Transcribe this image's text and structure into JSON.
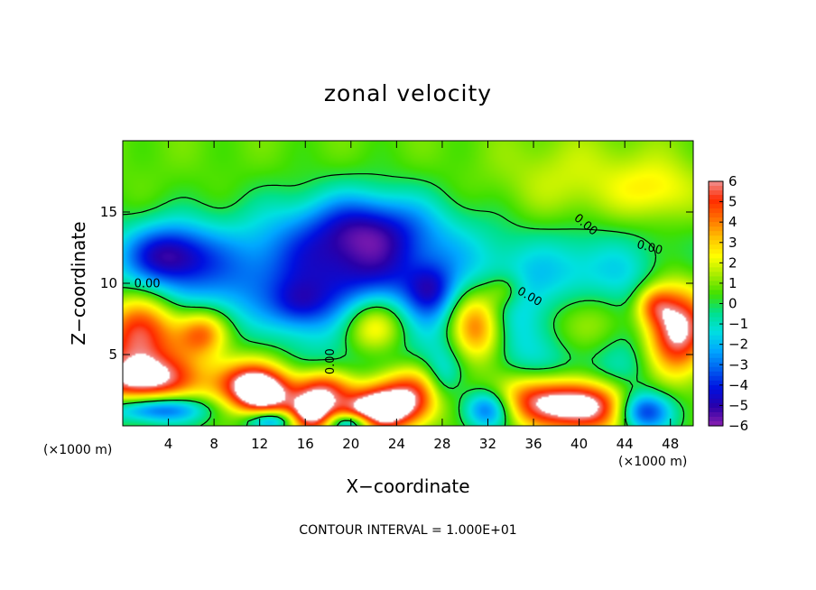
{
  "chart_data": {
    "type": "heatmap",
    "title": "zonal velocity",
    "xlabel": "X−coordinate",
    "ylabel": "Z−coordinate",
    "x_unit": "(×1000 m)",
    "z_unit": "(×1000 m)",
    "xlim": [
      0,
      50
    ],
    "ylim": [
      0,
      20
    ],
    "x_ticks": [
      "4",
      "8",
      "12",
      "16",
      "20",
      "24",
      "28",
      "32",
      "36",
      "40",
      "44",
      "48"
    ],
    "y_ticks": [
      "5",
      "10",
      "15"
    ],
    "colorbar": {
      "min": -6,
      "max": 6,
      "ticks": [
        "6",
        "5",
        "4",
        "3",
        "2",
        "1",
        "0",
        "−1",
        "−2",
        "−3",
        "−4",
        "−5",
        "−6"
      ],
      "colors": [
        "#8a1fb0",
        "#2a00a8",
        "#0010e0",
        "#0060f0",
        "#00a8ff",
        "#00e0e0",
        "#00e08c",
        "#40e000",
        "#a6ec00",
        "#ffff00",
        "#ffc000",
        "#ff7000",
        "#ff2a00",
        "#f09090"
      ],
      "above_range": "#ffffff"
    },
    "contour_labels": [
      "0.00",
      "0.00",
      "0.00",
      "0.00",
      "0.00"
    ],
    "contour_interval_note": "CONTOUR INTERVAL = 1.000E+01",
    "background_value": 0.4,
    "features": [
      {
        "x": 4,
        "z": 12,
        "sx": 2.8,
        "sz": 1.6,
        "v": -4.3
      },
      {
        "x": 20,
        "z": 12.5,
        "sx": 7,
        "sz": 2.6,
        "v": -3.2
      },
      {
        "x": 21.5,
        "z": 14,
        "sx": 3.8,
        "sz": 1.7,
        "v": -2.6
      },
      {
        "x": 15.5,
        "z": 8.5,
        "sx": 1.8,
        "sz": 1.2,
        "v": -2.2
      },
      {
        "x": 27,
        "z": 9.5,
        "sx": 1.5,
        "sz": 1.3,
        "v": -2.4
      },
      {
        "x": 10,
        "z": 9.5,
        "sx": 9,
        "sz": 2.5,
        "v": -2.0
      },
      {
        "x": 40,
        "z": 17,
        "sx": 5,
        "sz": 2.2,
        "v": 1.2
      },
      {
        "x": 47,
        "z": 16.5,
        "sx": 2.5,
        "sz": 1.5,
        "v": 1.5
      },
      {
        "x": 1.5,
        "z": 6.5,
        "sx": 2.6,
        "sz": 2.2,
        "v": 5.5
      },
      {
        "x": 2,
        "z": 3.2,
        "sx": 3.5,
        "sz": 1.2,
        "v": 5.2
      },
      {
        "x": 7,
        "z": 6.5,
        "sx": 1.6,
        "sz": 1.2,
        "v": 4.2
      },
      {
        "x": 10.5,
        "z": 3,
        "sx": 2,
        "sz": 1.2,
        "v": 4.0
      },
      {
        "x": 12.5,
        "z": 2.2,
        "sx": 1.8,
        "sz": 1.2,
        "v": 6.0
      },
      {
        "x": 17.5,
        "z": 2.5,
        "sx": 1.8,
        "sz": 1.0,
        "v": 4.8
      },
      {
        "x": 16.5,
        "z": 0.8,
        "sx": 1.4,
        "sz": 0.9,
        "v": 6.0
      },
      {
        "x": 22,
        "z": 7,
        "sx": 2.3,
        "sz": 1.7,
        "v": 7.0
      },
      {
        "x": 25,
        "z": 2.2,
        "sx": 2.8,
        "sz": 1.4,
        "v": 5.5
      },
      {
        "x": 22,
        "z": 1.0,
        "sx": 2.2,
        "sz": 1.0,
        "v": 6.3
      },
      {
        "x": 31,
        "z": 7,
        "sx": 1.8,
        "sz": 2.0,
        "v": 6.6
      },
      {
        "x": 36,
        "z": 1.8,
        "sx": 3,
        "sz": 1.3,
        "v": 5.0
      },
      {
        "x": 41,
        "z": 1.3,
        "sx": 2.8,
        "sz": 1.3,
        "v": 6.5
      },
      {
        "x": 48.5,
        "z": 6.8,
        "sx": 2.0,
        "sz": 2.2,
        "v": 7.0
      },
      {
        "x": 46.5,
        "z": 8.5,
        "sx": 1.2,
        "sz": 1.0,
        "v": 3.0
      },
      {
        "x": 33.5,
        "z": 9.5,
        "sx": 1.2,
        "sz": 0.9,
        "v": 1.8
      },
      {
        "x": 40.5,
        "z": 7.2,
        "sx": 3.0,
        "sz": 2.2,
        "v": 7.5
      },
      {
        "x": 40.5,
        "z": 7.2,
        "sx": 4.2,
        "sz": 3.2,
        "v": -6.5
      },
      {
        "x": 22,
        "z": 7,
        "sx": 3.3,
        "sz": 2.6,
        "v": -4.5
      },
      {
        "x": 31,
        "z": 7,
        "sx": 2.8,
        "sz": 3.0,
        "v": -2.5
      },
      {
        "x": 3,
        "z": 1.2,
        "sx": 3,
        "sz": 0.7,
        "v": -4.5
      },
      {
        "x": 13,
        "z": 0.4,
        "sx": 1.6,
        "sz": 0.5,
        "v": -4.0
      },
      {
        "x": 20,
        "z": 0.2,
        "sx": 1.4,
        "sz": 0.5,
        "v": -4.5
      },
      {
        "x": 32,
        "z": 1.2,
        "sx": 1.6,
        "sz": 1.0,
        "v": -4.5
      },
      {
        "x": 45.5,
        "z": 1.0,
        "sx": 1.8,
        "sz": 1.0,
        "v": -5.0
      },
      {
        "x": 28,
        "z": 3.0,
        "sx": 1.2,
        "sz": 1.5,
        "v": -2.5
      }
    ]
  }
}
